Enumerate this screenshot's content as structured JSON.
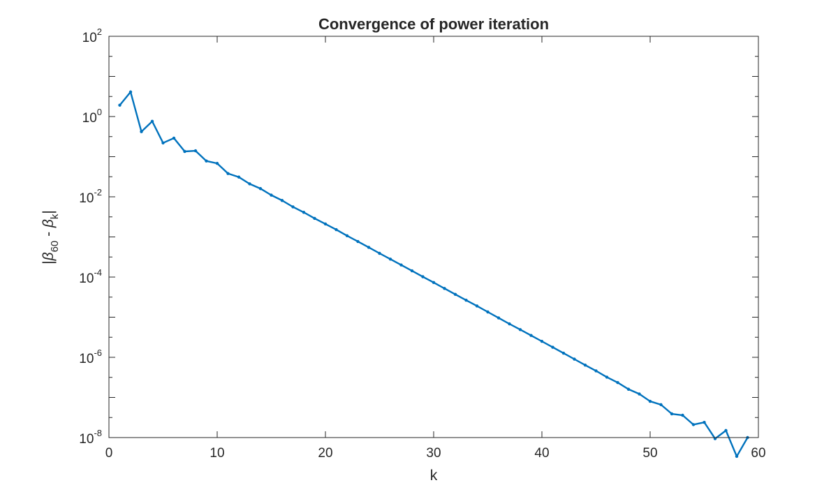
{
  "chart_data": {
    "type": "line",
    "title": "Convergence of power iteration",
    "xlabel": "k",
    "ylabel": {
      "prefix": "|",
      "beta1": "β",
      "sub1": "60",
      "middle": " - ",
      "beta2": "β",
      "sub2": "k",
      "suffix": "|"
    },
    "xlim": [
      0,
      60
    ],
    "ylim": [
      1e-08,
      100
    ],
    "yscale": "log",
    "grid": false,
    "legend": "none",
    "x_ticks": [
      0,
      10,
      20,
      30,
      40,
      50,
      60
    ],
    "y_ticks": [
      {
        "base": "10",
        "exp": "2",
        "value": 100
      },
      {
        "base": "10",
        "exp": "0",
        "value": 1
      },
      {
        "base": "10",
        "exp": "-2",
        "value": 0.01
      },
      {
        "base": "10",
        "exp": "-4",
        "value": 0.0001
      },
      {
        "base": "10",
        "exp": "-6",
        "value": 1e-06
      },
      {
        "base": "10",
        "exp": "-8",
        "value": 1e-08
      }
    ],
    "series": [
      {
        "color": "#0072BD",
        "x": [
          1,
          2,
          3,
          4,
          5,
          6,
          7,
          8,
          9,
          10,
          11,
          12,
          13,
          14,
          15,
          16,
          17,
          18,
          19,
          20,
          21,
          22,
          23,
          24,
          25,
          26,
          27,
          28,
          29,
          30,
          31,
          32,
          33,
          34,
          35,
          36,
          37,
          38,
          39,
          40,
          41,
          42,
          43,
          44,
          45,
          46,
          47,
          48,
          49,
          50,
          51,
          52,
          53,
          54,
          55,
          56,
          57,
          58,
          59
        ],
        "y": [
          1.92,
          4.1,
          0.42,
          0.76,
          0.22,
          0.29,
          0.135,
          0.14,
          0.078,
          0.068,
          0.038,
          0.031,
          0.021,
          0.016,
          0.011,
          0.0081,
          0.0056,
          0.0041,
          0.0029,
          0.0021,
          0.00152,
          0.00107,
          0.00077,
          0.00055,
          0.00039,
          0.00028,
          0.0002,
          0.000143,
          0.000102,
          7.3e-05,
          5.2e-05,
          3.7e-05,
          2.65e-05,
          1.9e-05,
          1.35e-05,
          9.6e-06,
          6.8e-06,
          4.9e-06,
          3.5e-06,
          2.5e-06,
          1.78e-06,
          1.27e-06,
          9e-07,
          6.4e-07,
          4.6e-07,
          3.2e-07,
          2.35e-07,
          1.6e-07,
          1.22e-07,
          8e-08,
          6.6e-08,
          3.9e-08,
          3.6e-08,
          2.1e-08,
          2.4e-08,
          9.4e-09,
          1.5e-08,
          3.4e-09,
          1e-08
        ]
      }
    ]
  }
}
